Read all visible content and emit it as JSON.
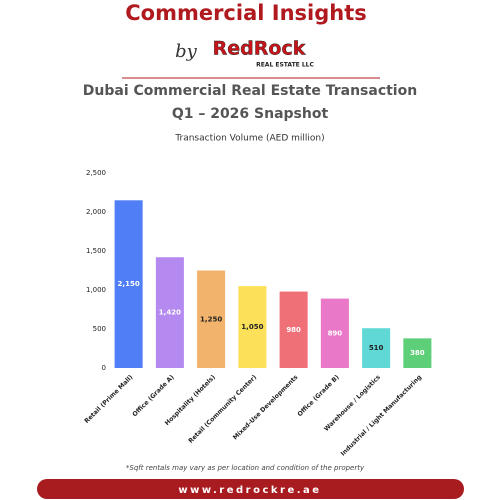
{
  "header": {
    "title": "Commercial Insights",
    "by": "by",
    "logo": "RedRock",
    "logo_subtitle": "REAL ESTATE LLC"
  },
  "chart_data": {
    "type": "bar",
    "title": "Dubai Commercial Real Estate Transaction",
    "subtitle": "Q1 – 2026 Snapshot",
    "ylabel": "Transaction Volume (AED million)",
    "categories": [
      "Retail (Prime Mall)",
      "Office (Grade A)",
      "Hospitality (Hotels)",
      "Retail (Community Center)",
      "Mixed-Use Developments",
      "Office (Grade B)",
      "Warehouse / Logistics",
      "Industrial / Light Manufacturing"
    ],
    "values": [
      2150,
      1420,
      1250,
      1050,
      980,
      890,
      510,
      380
    ],
    "value_labels": [
      "2,150",
      "1,420",
      "1,250",
      "1,050",
      "980",
      "890",
      "510",
      "380"
    ],
    "colors": [
      "#4f7ef7",
      "#b58af0",
      "#f2b36d",
      "#fde05a",
      "#f07078",
      "#ea78c8",
      "#5fd8d6",
      "#5ccf78"
    ],
    "ylim": [
      0,
      2500
    ],
    "yticks": [
      0,
      500,
      {
        "value": 1000,
        "label": "1,000"
      },
      {
        "value": 1500,
        "label": "1,500"
      },
      {
        "value": 2000,
        "label": "2,000"
      },
      {
        "value": 2500,
        "label": "2,500"
      }
    ],
    "grid": false
  },
  "footer": {
    "note": "*Sqft rentals may vary as per location and condition of the property",
    "website": "www.redrockre.ae"
  }
}
